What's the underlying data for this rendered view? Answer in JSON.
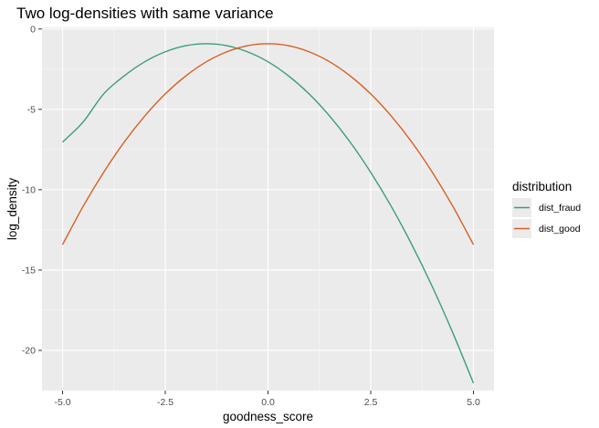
{
  "chart_data": {
    "type": "line",
    "title": "Two log-densities with same variance",
    "xlabel": "goodness_score",
    "ylabel": "log_density",
    "xlim": [
      -5.5,
      5.5
    ],
    "ylim": [
      -22.5,
      0.1
    ],
    "x_ticks": [
      -5.0,
      -2.5,
      0.0,
      2.5,
      5.0
    ],
    "x_tick_labels": [
      "-5.0",
      "-2.5",
      "0.0",
      "2.5",
      "5.0"
    ],
    "y_ticks": [
      0,
      -5,
      -10,
      -15,
      -20
    ],
    "y_tick_labels": [
      "0",
      "-5",
      "-10",
      "-15",
      "-20"
    ],
    "grid": true,
    "legend": {
      "title": "distribution",
      "position": "right"
    },
    "series": [
      {
        "name": "dist_fraud",
        "color": "#3a9c7e",
        "x": [
          -5.0,
          -4.5,
          -4.0,
          -3.5,
          -3.0,
          -2.5,
          -2.0,
          -1.5,
          -1.0,
          -0.5,
          0.0,
          0.5,
          1.0,
          1.5,
          2.0,
          2.5,
          3.0,
          3.5,
          4.0,
          4.5,
          5.0
        ],
        "y": [
          -7.04,
          -5.79,
          -4.04,
          -2.92,
          -2.04,
          -1.42,
          -1.04,
          -0.92,
          -1.04,
          -1.42,
          -2.04,
          -2.92,
          -4.04,
          -5.42,
          -7.04,
          -8.92,
          -11.04,
          -13.42,
          -16.04,
          -18.92,
          -22.04
        ]
      },
      {
        "name": "dist_good",
        "color": "#d65f25",
        "x": [
          -5.0,
          -4.5,
          -4.0,
          -3.5,
          -3.0,
          -2.5,
          -2.0,
          -1.5,
          -1.0,
          -0.5,
          0.0,
          0.5,
          1.0,
          1.5,
          2.0,
          2.5,
          3.0,
          3.5,
          4.0,
          4.5,
          5.0
        ],
        "y": [
          -13.42,
          -11.04,
          -8.92,
          -7.04,
          -5.42,
          -4.04,
          -2.92,
          -2.04,
          -1.42,
          -1.04,
          -0.92,
          -1.04,
          -1.42,
          -2.04,
          -2.92,
          -4.04,
          -5.42,
          -7.04,
          -8.92,
          -11.04,
          -13.42
        ]
      }
    ]
  }
}
